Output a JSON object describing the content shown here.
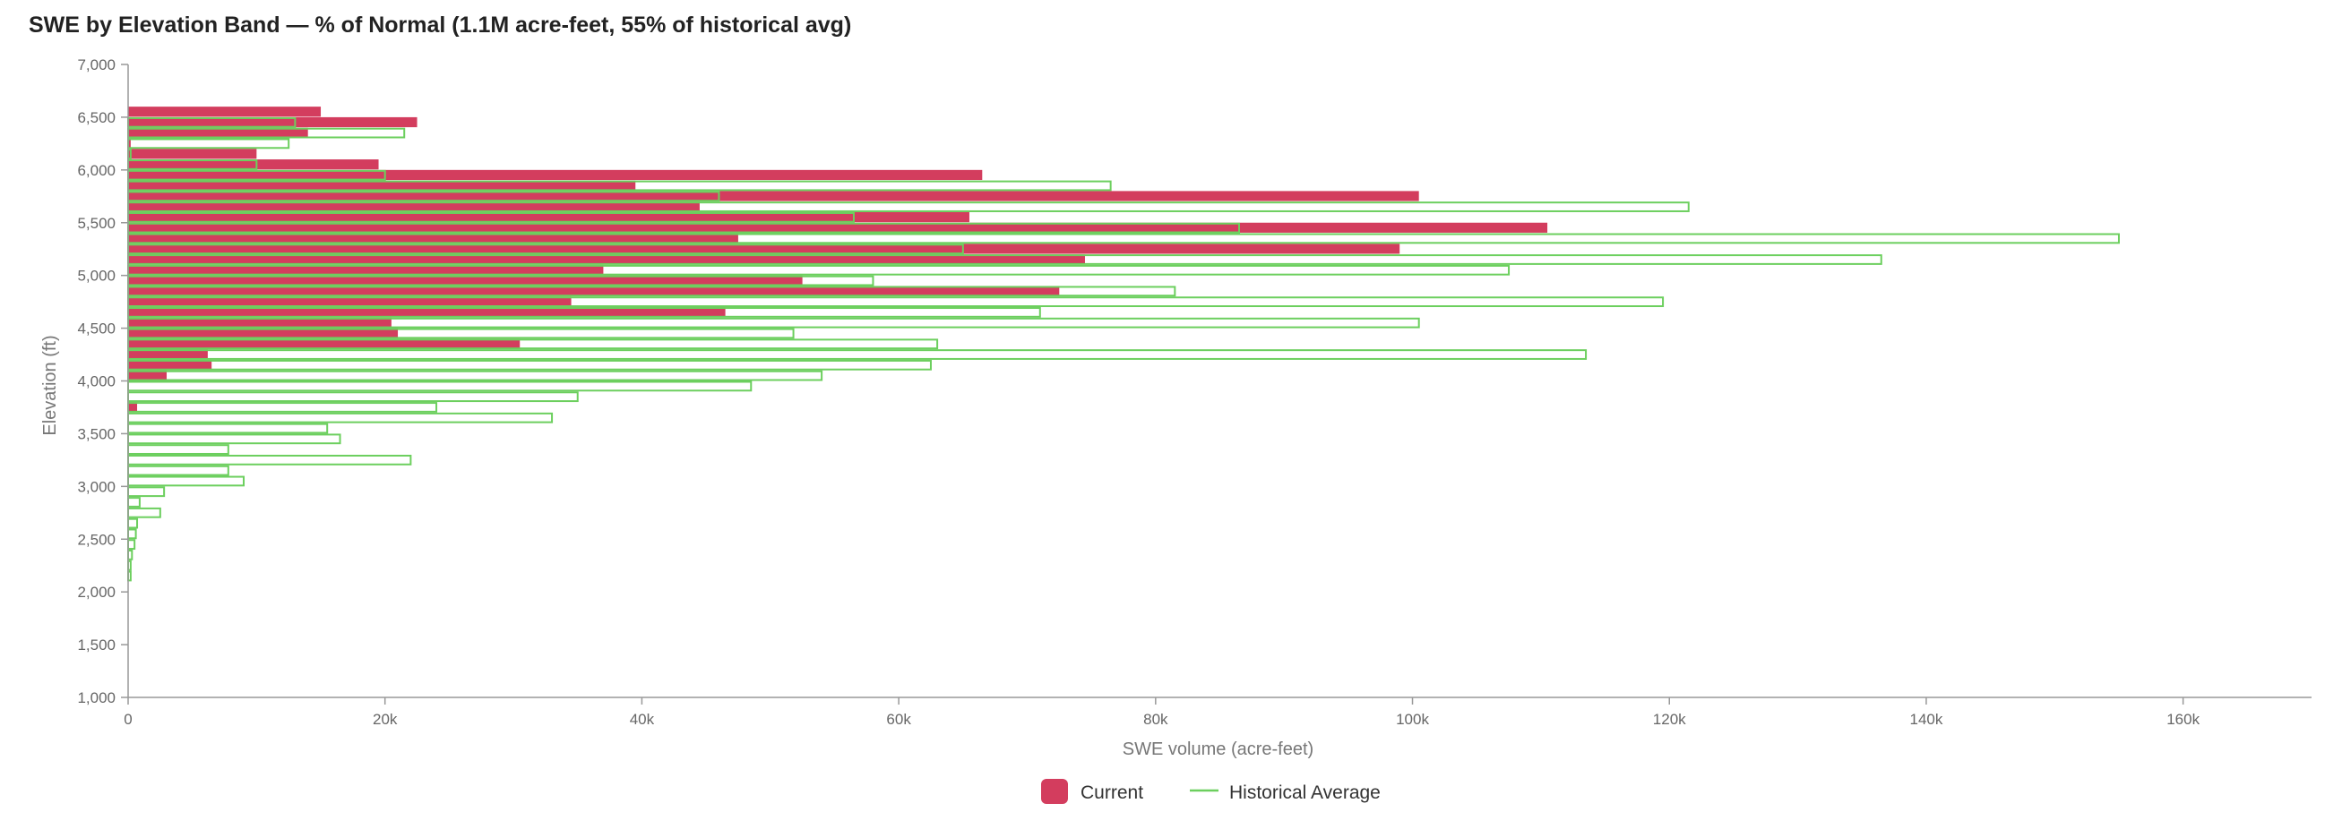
{
  "chart_data": {
    "type": "bar",
    "orientation": "horizontal",
    "title": "SWE by Elevation Band — % of Normal (1.1M acre-feet, 55% of historical avg)",
    "xlabel": "SWE volume (acre-feet)",
    "ylabel": "Elevation (ft)",
    "xlim": [
      0,
      170000
    ],
    "ylim": [
      1000,
      7000
    ],
    "x_ticks": [
      0,
      20000,
      40000,
      60000,
      80000,
      100000,
      120000,
      140000,
      160000
    ],
    "x_tick_labels": [
      "0",
      "20k",
      "40k",
      "60k",
      "80k",
      "100k",
      "120k",
      "140k",
      "160k"
    ],
    "y_ticks": [
      1000,
      1500,
      2000,
      2500,
      3000,
      3500,
      4000,
      4500,
      5000,
      5500,
      6000,
      6500,
      7000
    ],
    "y_tick_labels": [
      "1,000",
      "1,500",
      "2,000",
      "2,500",
      "3,000",
      "3,500",
      "4,000",
      "4,500",
      "5,000",
      "5,500",
      "6,000",
      "6,500",
      "7,000"
    ],
    "grid": false,
    "legend_position": "bottom",
    "elevations": [
      1400,
      1500,
      1600,
      1700,
      1800,
      1900,
      2000,
      2100,
      2200,
      2300,
      2400,
      2500,
      2600,
      2700,
      2800,
      2900,
      3000,
      3100,
      3200,
      3300,
      3400,
      3500,
      3600,
      3700,
      3800,
      3900,
      4000,
      4100,
      4200,
      4300,
      4400,
      4500,
      4600,
      4700,
      4800,
      4900,
      5000,
      5100,
      5200,
      5300,
      5400,
      5500,
      5600,
      5700,
      5800,
      5900,
      6000,
      6100,
      6200,
      6300,
      6400,
      6500
    ],
    "series": [
      {
        "name": "Current",
        "color": "#d33d5e",
        "style": "filled",
        "values": [
          0,
          0,
          0,
          0,
          0,
          0,
          0,
          0,
          0,
          0,
          0,
          0,
          0,
          0,
          0,
          0,
          0,
          0,
          0,
          0,
          0,
          0,
          0,
          700,
          0,
          0,
          3000,
          6500,
          6200,
          30500,
          21000,
          20500,
          46500,
          34500,
          72500,
          52500,
          37000,
          74500,
          99000,
          47500,
          110500,
          65500,
          44500,
          100500,
          39500,
          66500,
          19500,
          10000,
          200,
          14000,
          22500,
          15000
        ]
      },
      {
        "name": "Historical Average",
        "color": "#6ccf5e",
        "style": "outline",
        "values": [
          0,
          0,
          0,
          0,
          0,
          0,
          0,
          200,
          200,
          300,
          500,
          600,
          700,
          2500,
          900,
          2800,
          9000,
          7800,
          22000,
          7800,
          16500,
          15500,
          33000,
          24000,
          35000,
          48500,
          54000,
          62500,
          113500,
          63000,
          51800,
          100500,
          71000,
          119500,
          81500,
          58000,
          107500,
          136500,
          65000,
          155000,
          86500,
          56500,
          121500,
          46000,
          76500,
          20000,
          10000,
          200,
          12500,
          21500,
          13000,
          0
        ]
      }
    ]
  }
}
